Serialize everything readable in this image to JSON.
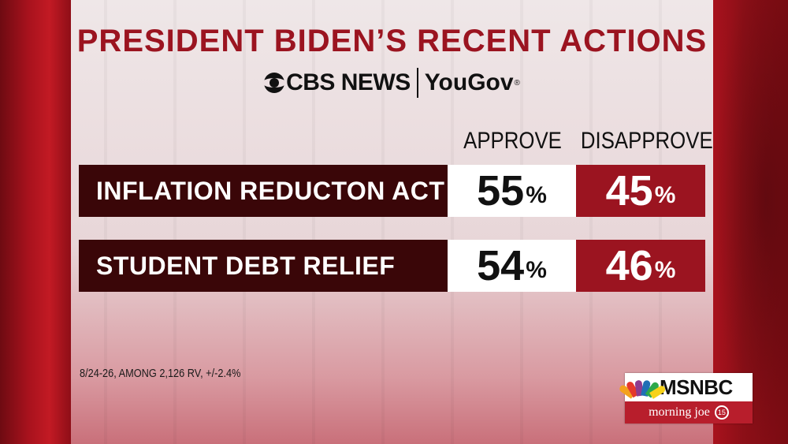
{
  "title": "PRESIDENT BIDEN’S RECENT ACTIONS",
  "logos": {
    "cbs": "CBS NEWS",
    "yougov": "YouGov",
    "yougov_mark": "®"
  },
  "columns": {
    "approve": "APPROVE",
    "disapprove": "DISAPPROVE"
  },
  "chart_data": {
    "type": "table",
    "title": "PRESIDENT BIDEN’S RECENT ACTIONS",
    "columns": [
      "APPROVE",
      "DISAPPROVE"
    ],
    "rows": [
      {
        "label": "INFLATION REDUCTON ACT",
        "approve": 55,
        "disapprove": 45
      },
      {
        "label": "STUDENT DEBT RELIEF",
        "approve": 54,
        "disapprove": 46
      }
    ],
    "unit": "%"
  },
  "rows": [
    {
      "label": "INFLATION REDUCTON ACT",
      "approve": "55",
      "disapprove": "45"
    },
    {
      "label": "STUDENT DEBT RELIEF",
      "approve": "54",
      "disapprove": "46"
    }
  ],
  "unit": "%",
  "footnote": "8/24-26, AMONG 2,126 RV, +/-2.4%",
  "branding": {
    "network": "MSNBC",
    "show": "morning joe",
    "badge": "15"
  },
  "colors": {
    "title_red": "#9b1420",
    "row_label_bg": "#3a0608",
    "disapprove_bg": "#9b1420"
  }
}
